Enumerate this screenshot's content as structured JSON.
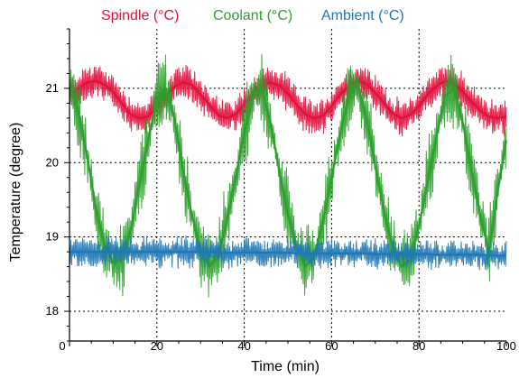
{
  "chart_data": {
    "type": "line",
    "xlabel": "Time (min)",
    "ylabel": "Temperature (degree)",
    "xlim": [
      0,
      100
    ],
    "ylim": [
      17.6,
      21.8
    ],
    "xticks": [
      0,
      20,
      40,
      60,
      80,
      100
    ],
    "yticks": [
      18,
      19,
      20,
      21
    ],
    "grid": "dotted",
    "legend_position": "top",
    "series": [
      {
        "name": "Spindle (°C)",
        "color": "#e0103c",
        "x": [
          0,
          2,
          4,
          6,
          8,
          10,
          12,
          14,
          16,
          18,
          20,
          22,
          24,
          26,
          28,
          30,
          32,
          34,
          36,
          38,
          40,
          42,
          44,
          46,
          48,
          50,
          52,
          54,
          56,
          58,
          60,
          62,
          64,
          66,
          68,
          70,
          72,
          74,
          76,
          78,
          80,
          82,
          84,
          86,
          88,
          90,
          92,
          94,
          96,
          98,
          100
        ],
        "values": [
          20.9,
          21.0,
          21.08,
          21.1,
          21.05,
          20.95,
          20.8,
          20.65,
          20.6,
          20.62,
          20.75,
          20.9,
          21.02,
          21.08,
          21.05,
          20.92,
          20.78,
          20.64,
          20.6,
          20.65,
          20.78,
          20.93,
          21.03,
          21.08,
          21.04,
          20.93,
          20.78,
          20.65,
          20.6,
          20.63,
          20.76,
          20.92,
          21.04,
          21.1,
          21.06,
          20.94,
          20.8,
          20.66,
          20.6,
          20.64,
          20.76,
          20.92,
          21.03,
          21.1,
          21.06,
          20.96,
          20.82,
          20.7,
          20.62,
          20.6,
          20.62
        ]
      },
      {
        "name": "Coolant (°C)",
        "color": "#2ca02c",
        "x": [
          0,
          2,
          4,
          6,
          8,
          10,
          12,
          14,
          16,
          18,
          20,
          22,
          24,
          26,
          28,
          30,
          32,
          34,
          36,
          38,
          40,
          42,
          44,
          46,
          48,
          50,
          52,
          54,
          56,
          58,
          60,
          62,
          64,
          66,
          68,
          70,
          72,
          74,
          76,
          78,
          80,
          82,
          84,
          86,
          88,
          90,
          92,
          94,
          96,
          98,
          100
        ],
        "values": [
          21.0,
          20.7,
          20.1,
          19.4,
          18.9,
          18.65,
          18.7,
          19.1,
          19.7,
          20.3,
          20.85,
          21.0,
          20.6,
          19.9,
          19.3,
          18.8,
          18.6,
          18.75,
          19.2,
          19.8,
          20.4,
          20.9,
          21.0,
          20.55,
          19.9,
          19.3,
          18.85,
          18.6,
          18.75,
          19.2,
          19.8,
          20.4,
          20.9,
          21.05,
          20.6,
          19.95,
          19.35,
          18.85,
          18.6,
          18.7,
          19.15,
          19.75,
          20.35,
          20.9,
          21.0,
          20.55,
          19.9,
          19.3,
          18.8,
          19.6,
          20.3
        ]
      },
      {
        "name": "Ambient (°C)",
        "color": "#1f77b4",
        "x": [
          0,
          2,
          4,
          6,
          8,
          10,
          12,
          14,
          16,
          18,
          20,
          22,
          24,
          26,
          28,
          30,
          32,
          34,
          36,
          38,
          40,
          42,
          44,
          46,
          48,
          50,
          52,
          54,
          56,
          58,
          60,
          62,
          64,
          66,
          68,
          70,
          72,
          74,
          76,
          78,
          80,
          82,
          84,
          86,
          88,
          90,
          92,
          94,
          96,
          98,
          100
        ],
        "values": [
          18.8,
          18.8,
          18.8,
          18.8,
          18.8,
          18.8,
          18.8,
          18.8,
          18.8,
          18.8,
          18.8,
          18.8,
          18.8,
          18.8,
          18.8,
          18.8,
          18.8,
          18.79,
          18.79,
          18.79,
          18.79,
          18.79,
          18.79,
          18.79,
          18.79,
          18.79,
          18.78,
          18.78,
          18.78,
          18.78,
          18.78,
          18.78,
          18.78,
          18.78,
          18.78,
          18.77,
          18.77,
          18.77,
          18.77,
          18.77,
          18.77,
          18.77,
          18.76,
          18.76,
          18.76,
          18.76,
          18.76,
          18.76,
          18.75,
          18.75,
          18.75
        ]
      }
    ]
  }
}
